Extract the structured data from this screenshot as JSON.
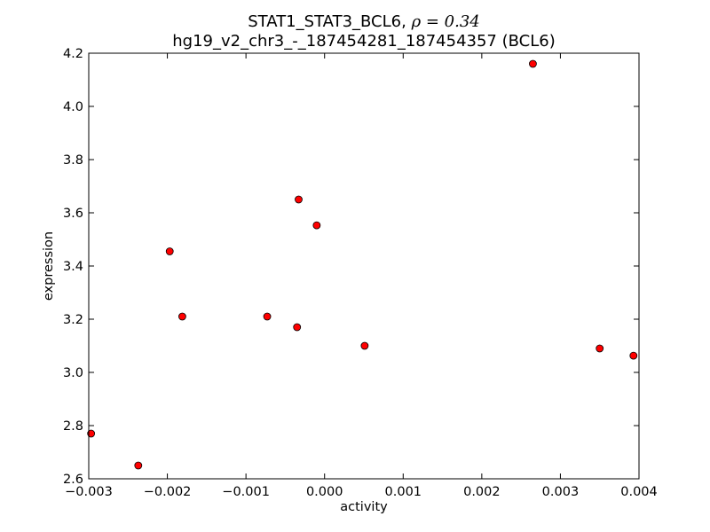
{
  "chart_data": {
    "type": "scatter",
    "title_line1": "STAT1_STAT3_BCL6, ",
    "title_rho": "ρ = 0.34",
    "title_line2": "hg19_v2_chr3_-_187454281_187454357 (BCL6)",
    "xlabel": "activity",
    "ylabel": "expression",
    "xlim": [
      -0.003,
      0.004
    ],
    "ylim": [
      2.6,
      4.2
    ],
    "xticks": [
      {
        "value": -0.003,
        "label": "−0.003"
      },
      {
        "value": -0.002,
        "label": "−0.002"
      },
      {
        "value": -0.001,
        "label": "−0.001"
      },
      {
        "value": 0.0,
        "label": "0.000"
      },
      {
        "value": 0.001,
        "label": "0.001"
      },
      {
        "value": 0.002,
        "label": "0.002"
      },
      {
        "value": 0.003,
        "label": "0.003"
      },
      {
        "value": 0.004,
        "label": "0.004"
      }
    ],
    "yticks": [
      {
        "value": 2.6,
        "label": "2.6"
      },
      {
        "value": 2.8,
        "label": "2.8"
      },
      {
        "value": 3.0,
        "label": "3.0"
      },
      {
        "value": 3.2,
        "label": "3.2"
      },
      {
        "value": 3.4,
        "label": "3.4"
      },
      {
        "value": 3.6,
        "label": "3.6"
      },
      {
        "value": 3.8,
        "label": "3.8"
      },
      {
        "value": 4.0,
        "label": "4.0"
      },
      {
        "value": 4.2,
        "label": "4.2"
      }
    ],
    "grid": false,
    "marker_color": "#ff0000",
    "marker_edge_color": "#000000",
    "points": [
      {
        "x": -0.00297,
        "y": 2.77
      },
      {
        "x": -0.00237,
        "y": 2.65
      },
      {
        "x": -0.00197,
        "y": 3.455
      },
      {
        "x": -0.00181,
        "y": 3.21
      },
      {
        "x": -0.00073,
        "y": 3.21
      },
      {
        "x": -0.00035,
        "y": 3.17
      },
      {
        "x": -0.00033,
        "y": 3.65
      },
      {
        "x": -0.0001,
        "y": 3.553
      },
      {
        "x": 0.00051,
        "y": 3.1
      },
      {
        "x": 0.00265,
        "y": 4.16
      },
      {
        "x": 0.0035,
        "y": 3.09
      },
      {
        "x": 0.00393,
        "y": 3.063
      }
    ]
  }
}
